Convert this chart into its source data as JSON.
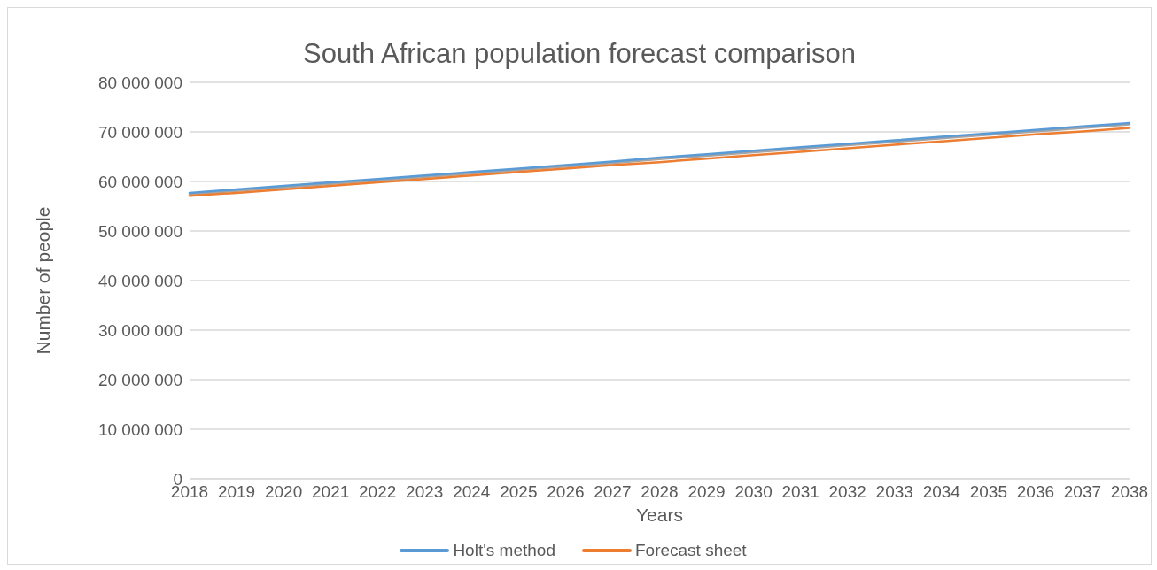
{
  "chart_data": {
    "type": "line",
    "title": "South African population forecast comparison",
    "xlabel": "Years",
    "ylabel": "Number of people",
    "categories": [
      "2018",
      "2019",
      "2020",
      "2021",
      "2022",
      "2023",
      "2024",
      "2025",
      "2026",
      "2027",
      "2028",
      "2029",
      "2030",
      "2031",
      "2032",
      "2033",
      "2034",
      "2035",
      "2036",
      "2037",
      "2038"
    ],
    "series": [
      {
        "name": "Holt's method",
        "color": "#5b9bd5",
        "values": [
          57700000,
          58400000,
          59100000,
          59800000,
          60500000,
          61200000,
          61900000,
          62600000,
          63300000,
          64000000,
          64800000,
          65500000,
          66200000,
          66900000,
          67600000,
          68300000,
          69000000,
          69700000,
          70400000,
          71100000,
          71800000
        ]
      },
      {
        "name": "Forecast sheet",
        "color": "#ed7d31",
        "values": [
          57100000,
          57700000,
          58400000,
          59100000,
          59800000,
          60500000,
          61200000,
          61900000,
          62600000,
          63300000,
          63900000,
          64600000,
          65300000,
          66000000,
          66700000,
          67400000,
          68100000,
          68800000,
          69500000,
          70100000,
          70800000
        ]
      },
      {
        "color": "#a5a5a5",
        "values": [
          57400000,
          58100000,
          58800000,
          59500000,
          60200000,
          60900000,
          61600000,
          62300000,
          63000000,
          63700000,
          64500000,
          65200000,
          65900000,
          66600000,
          67300000,
          68000000,
          68700000,
          69400000,
          70100000,
          70800000,
          71500000
        ]
      }
    ],
    "ylim": [
      0,
      80000000
    ],
    "yticks": [
      0,
      {
        "value": 10000000,
        "label": "10 000 000"
      },
      {
        "value": 20000000,
        "label": "20 000 000"
      },
      {
        "value": 30000000,
        "label": "30 000 000"
      },
      {
        "value": 40000000,
        "label": "40 000 000"
      },
      {
        "value": 50000000,
        "label": "50 000 000"
      },
      {
        "value": 60000000,
        "label": "60 000 000"
      },
      {
        "value": 70000000,
        "label": "70 000 000"
      },
      {
        "value": 80000000,
        "label": "80 000 000"
      }
    ],
    "grid": "y",
    "legend": "bottom",
    "marker": "none",
    "line_style": "solid"
  }
}
